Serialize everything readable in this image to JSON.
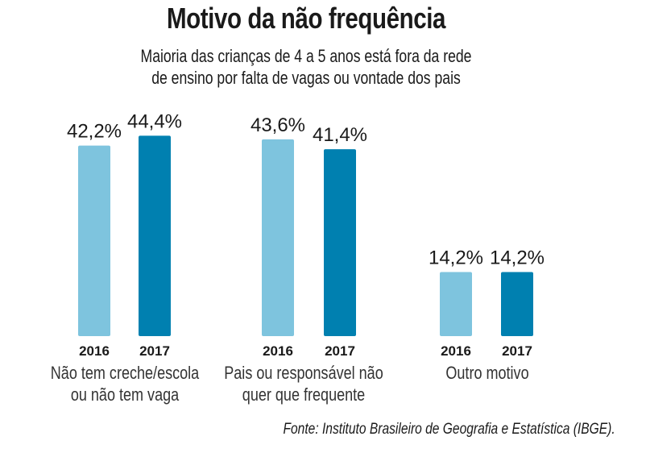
{
  "header": {
    "title": "Motivo da não frequência",
    "subtitle_line1": "Maioria das crianças de 4 a 5 anos está fora da rede",
    "subtitle_line2": "de ensino por falta de vagas ou vontade dos pais"
  },
  "source": "Fonte: Instituto Brasileiro de Geografia e Estatística (IBGE).",
  "colors": {
    "y2016": "#7ec4de",
    "y2017": "#0080b0"
  },
  "chart_data": {
    "type": "bar",
    "title": "Motivo da não frequência",
    "subtitle": "Maioria das crianças de 4 a 5 anos está fora da rede de ensino por falta de vagas ou vontade dos pais",
    "categories": [
      [
        "Não tem creche/escola",
        "ou não tem vaga"
      ],
      [
        "Pais ou responsável não",
        "quer que frequente"
      ],
      [
        "Outro motivo"
      ]
    ],
    "series": [
      {
        "name": "2016",
        "values": [
          42.2,
          43.6,
          14.2
        ],
        "labels": [
          "42,2%",
          "43,6%",
          "14,2%"
        ]
      },
      {
        "name": "2017",
        "values": [
          44.4,
          41.4,
          14.2
        ],
        "labels": [
          "44,4%",
          "41,4%",
          "14,2%"
        ]
      }
    ],
    "xlabel": "",
    "ylabel": "",
    "ylim": [
      0,
      50
    ],
    "grid": false,
    "legend": "none"
  }
}
